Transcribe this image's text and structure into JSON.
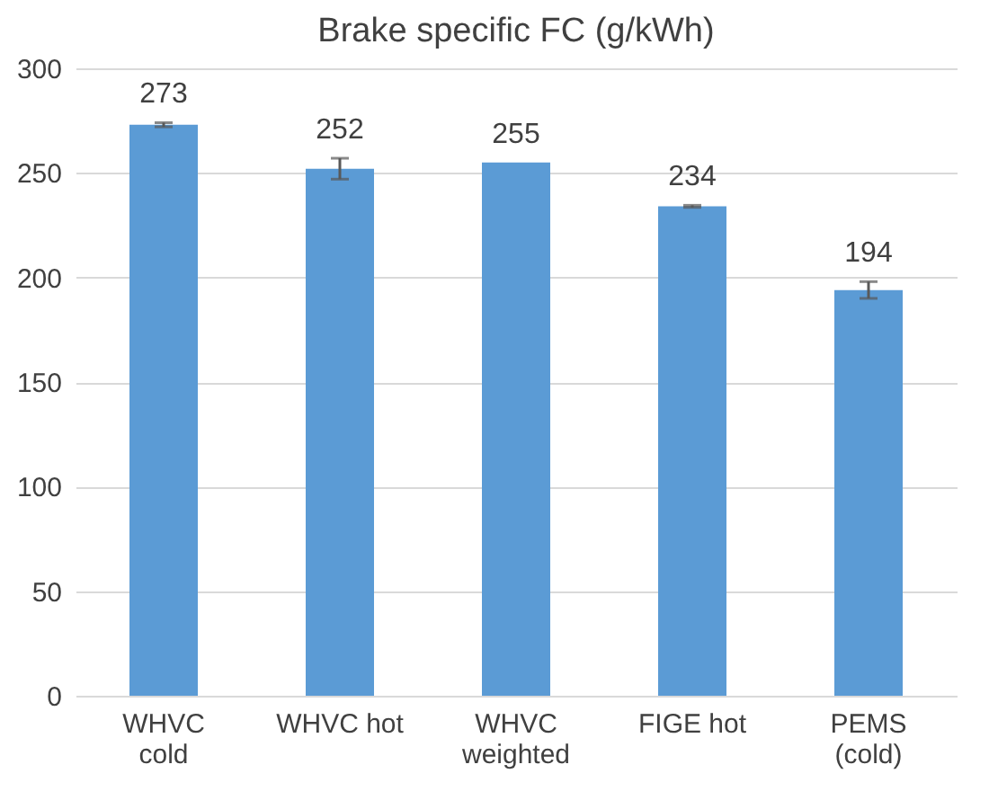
{
  "chart_data": {
    "type": "bar",
    "title": "Brake specific FC (g/kWh)",
    "categories": [
      "WHVC cold",
      "WHVC hot",
      "WHVC weighted",
      "FIGE hot",
      "PEMS (cold)"
    ],
    "values": [
      273,
      252,
      255,
      234,
      194
    ],
    "errors": [
      1,
      5,
      null,
      0.5,
      4
    ],
    "color": "#5b9bd5",
    "data_labels": true,
    "grid": "y",
    "ylim": [
      0,
      300
    ],
    "yticks": [
      0,
      50,
      100,
      150,
      200,
      250,
      300
    ]
  }
}
